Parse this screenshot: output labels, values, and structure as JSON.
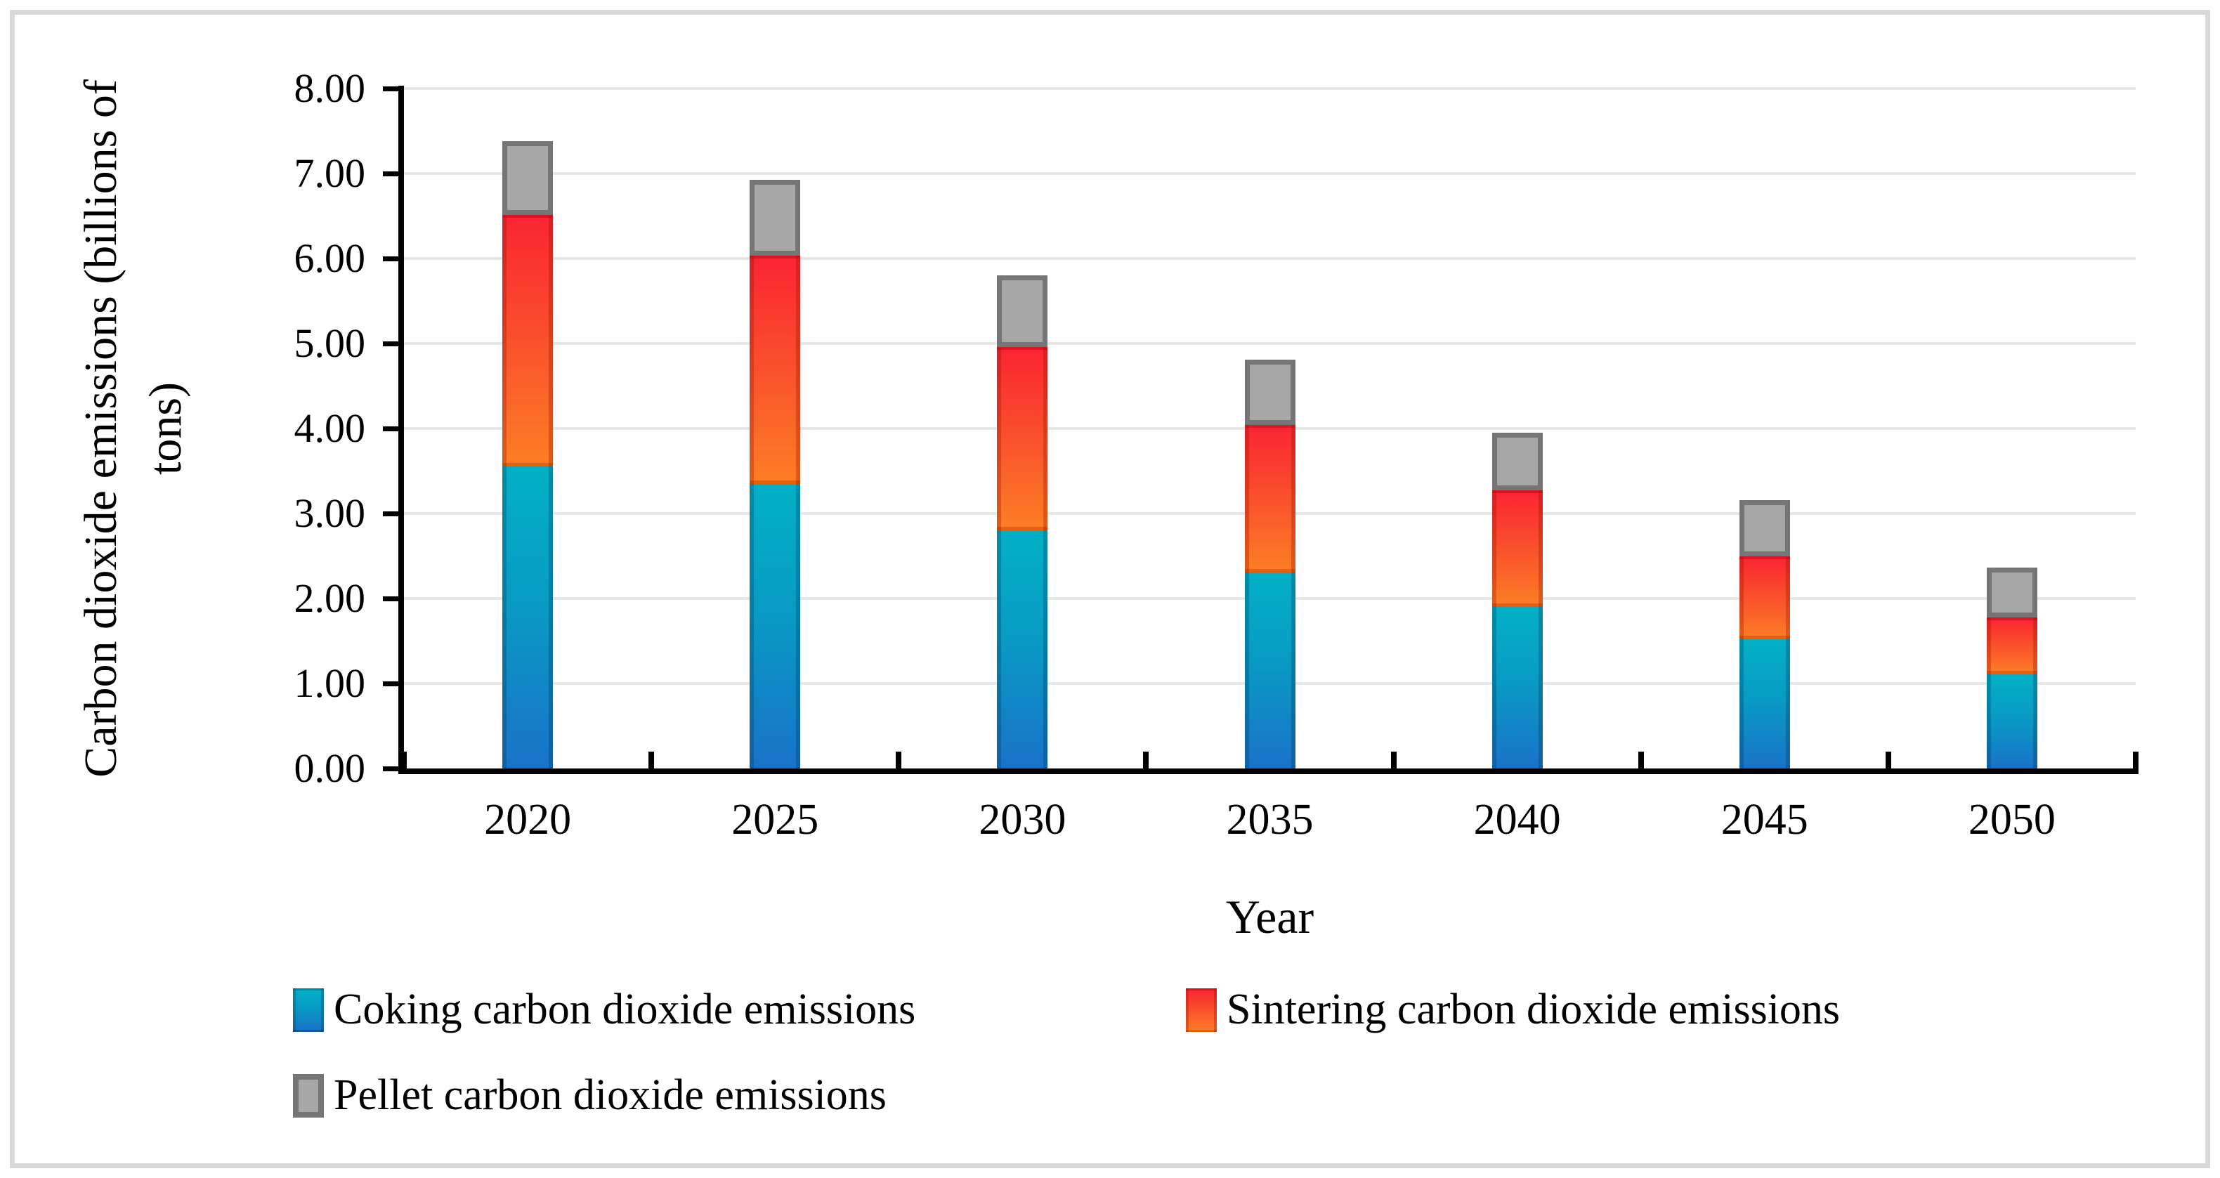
{
  "chart_data": {
    "type": "bar",
    "stacked": true,
    "categories": [
      "2020",
      "2025",
      "2030",
      "2035",
      "2040",
      "2045",
      "2050"
    ],
    "series": [
      {
        "name": "Coking carbon dioxide emissions",
        "key": "coking",
        "values": [
          3.55,
          3.35,
          2.8,
          2.31,
          1.9,
          1.52,
          1.11
        ],
        "color_top": "#02b0c6",
        "color_bottom": "#1a72c8"
      },
      {
        "name": "Sintering carbon dioxide emissions",
        "key": "sintering",
        "values": [
          2.96,
          2.68,
          2.16,
          1.73,
          1.37,
          0.98,
          0.67
        ],
        "color_top": "#fa2432",
        "color_bottom": "#fd7e25"
      },
      {
        "name": "Pellet carbon dioxide emissions",
        "key": "pellet",
        "values": [
          0.87,
          0.9,
          0.84,
          0.77,
          0.68,
          0.66,
          0.58
        ],
        "color": "#a7a7a7",
        "border_color": "#757575"
      }
    ],
    "totals": [
      7.38,
      6.93,
      5.8,
      4.81,
      3.95,
      3.16,
      2.36
    ],
    "xlabel": "Year",
    "ylabel": "Carbon dioxide emissions (billions of tons)",
    "ylabel_lines": [
      "Carbon dioxide emissions (billions of",
      "tons)"
    ],
    "ylim": [
      0,
      8
    ],
    "ytick_step": 1,
    "yticks": [
      "0.00",
      "1.00",
      "2.00",
      "3.00",
      "4.00",
      "5.00",
      "6.00",
      "7.00",
      "8.00"
    ],
    "grid": true,
    "legend_position": "bottom-left"
  },
  "style_colors": {
    "gridline": "#e7e7e7",
    "axis": "#000000",
    "frame_border": "#d9d9d9",
    "text": "#000000"
  }
}
